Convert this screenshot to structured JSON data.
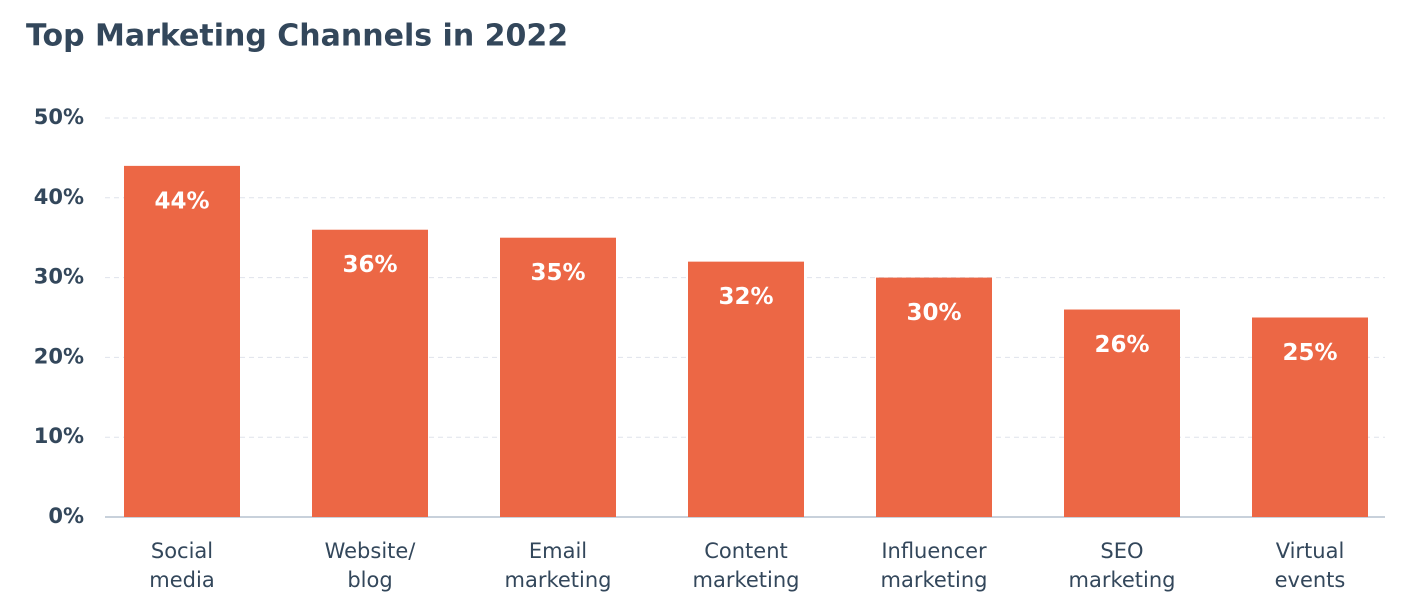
{
  "chart_data": {
    "type": "bar",
    "title": "Top Marketing Channels in 2022",
    "categories": [
      "Social media",
      "Website/blog",
      "Email marketing",
      "Content marketing",
      "Influencer marketing",
      "SEO marketing",
      "Virtual events"
    ],
    "values": [
      44,
      36,
      35,
      32,
      30,
      26,
      25
    ],
    "value_labels": [
      "44%",
      "36%",
      "35%",
      "32%",
      "30%",
      "26%",
      "25%"
    ],
    "color": "#ec6745",
    "ylim": [
      0,
      50
    ],
    "yticks": [
      {
        "value": 0,
        "label": "0%"
      },
      {
        "value": 10,
        "label": "10%"
      },
      {
        "value": 20,
        "label": "20%"
      },
      {
        "value": 30,
        "label": "30%"
      },
      {
        "value": 40,
        "label": "40%"
      },
      {
        "value": 50,
        "label": "50%"
      }
    ],
    "grid": true
  }
}
